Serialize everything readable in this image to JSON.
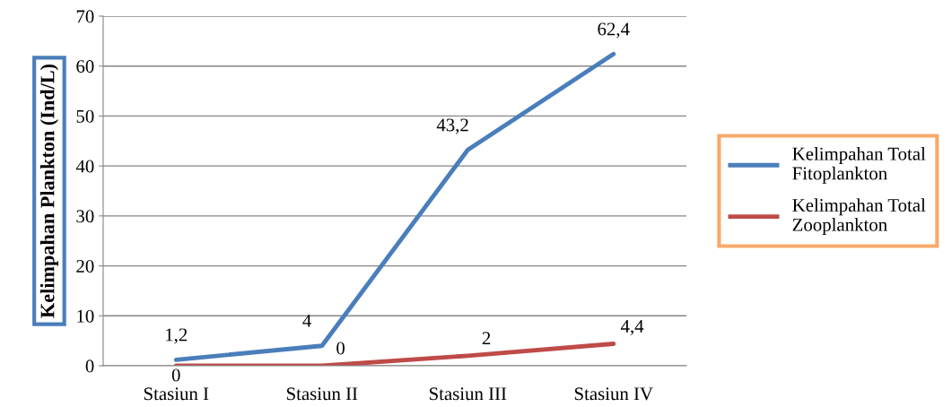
{
  "chart_data": {
    "type": "line",
    "ylabel": "Kelimpahan Plankton (Ind/L)",
    "categories": [
      "Stasiun I",
      "Stasiun II",
      "Stasiun III",
      "Stasiun IV"
    ],
    "series": [
      {
        "name": "Kelimpahan Total\nFitoplankton",
        "color": "#4a7ebb",
        "values": [
          1.2,
          4,
          43.2,
          62.4
        ],
        "value_labels": [
          "1,2",
          "4",
          "43,2",
          "62,4"
        ]
      },
      {
        "name": "Kelimpahan Total\nZooplankton",
        "color": "#be4b48",
        "values": [
          0,
          0,
          2,
          4.4
        ],
        "value_labels": [
          "0",
          "0",
          "2",
          "4,4"
        ]
      }
    ],
    "ylim": [
      0,
      70
    ],
    "yticks": [
      0,
      10,
      20,
      30,
      40,
      50,
      60,
      70
    ],
    "grid": "y",
    "legend": "right",
    "marker": "none",
    "line_style": "solid"
  }
}
